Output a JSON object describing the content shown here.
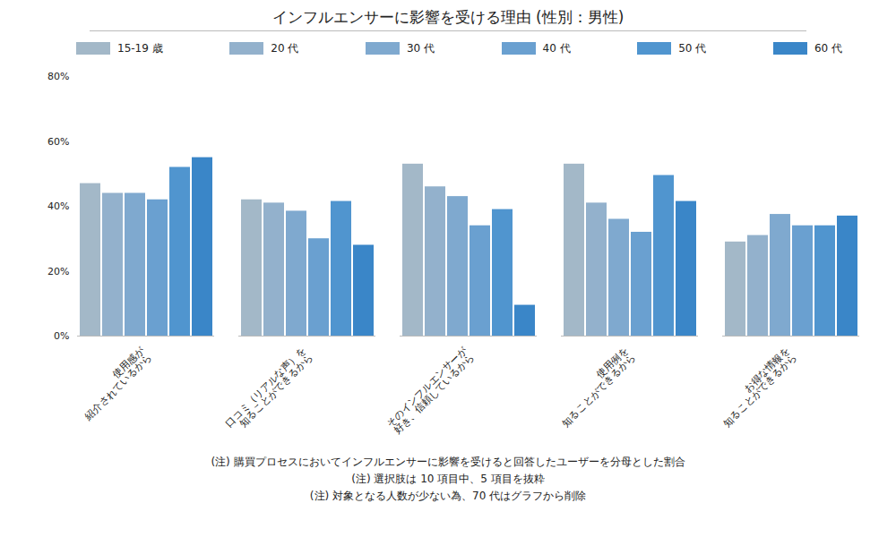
{
  "chart_data": {
    "type": "bar",
    "title": "インフルエンサーに影響を受ける理由 (性別：男性)",
    "categories": [
      "使用感が\n紹介されているから",
      "口コミ（リアルな声）を\n知ることができるから",
      "そのインフルエンサーが\n好き、信頼しているから",
      "使用例を\n知ることができるから",
      "お得な情報を\n知ることができるから"
    ],
    "series": [
      {
        "name": "15-19 歳",
        "color": "#a3b8c8",
        "values": [
          47,
          42,
          53,
          53,
          29
        ]
      },
      {
        "name": "20 代",
        "color": "#93b1cc",
        "values": [
          44,
          41,
          46,
          41,
          31
        ]
      },
      {
        "name": "30 代",
        "color": "#7fa9cf",
        "values": [
          44,
          38.5,
          43,
          36,
          37.5
        ]
      },
      {
        "name": "40 代",
        "color": "#6aa0d0",
        "values": [
          42,
          30,
          34,
          32,
          34
        ]
      },
      {
        "name": "50 代",
        "color": "#5095cf",
        "values": [
          52,
          41.5,
          39,
          49.5,
          34
        ]
      },
      {
        "name": "60 代",
        "color": "#3a86c8",
        "values": [
          55,
          28,
          9.5,
          41.5,
          37
        ]
      }
    ],
    "ylim": [
      0,
      80
    ],
    "yticks": [
      {
        "value": 0,
        "label": "0%"
      },
      {
        "value": 20,
        "label": "20%"
      },
      {
        "value": 40,
        "label": "40%"
      },
      {
        "value": 60,
        "label": "60%"
      },
      {
        "value": 80,
        "label": "80%"
      }
    ],
    "grid": false,
    "legend": "top",
    "annotations": [
      "(注) 購買プロセスにおいてインフルエンサーに影響を受けると回答したユーザーを分母とした割合",
      "(注) 選択肢は 10 項目中、5 項目を抜粋",
      "(注) 対象となる人数が少ない為、70 代はグラフから削除"
    ]
  }
}
